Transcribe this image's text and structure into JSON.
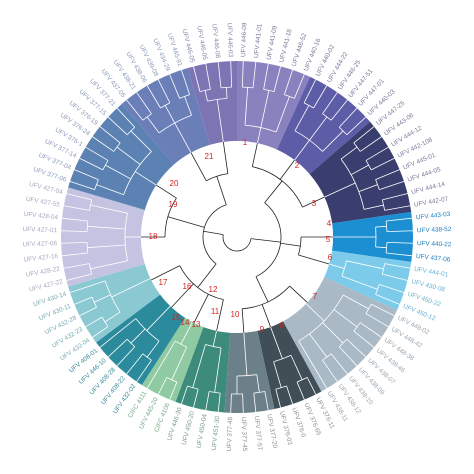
{
  "leaves": [
    "UFV 446-09",
    "UFV 441-01",
    "UFV 441-09",
    "UFV 441-18",
    "UFV 446-52",
    "UFV 440-16",
    "UFV 440-02",
    "UFV 444-22",
    "UFV 446-25",
    "UFV 447-51",
    "UFV 447-01",
    "UFV 440-03",
    "UFV 447-25",
    "UFV 443-06",
    "UFV 444-12",
    "UFV 442-108",
    "UFV 445-01",
    "UFV 444-05",
    "UFV 444-14",
    "UFV 442-07",
    "UFV 443-03",
    "UFV 438-52",
    "UFV 440-22",
    "UFV 437-06",
    "UFV 444-01",
    "UFV 430-08",
    "UFV 450-22",
    "UFV 450-12",
    "UFV 448-02",
    "UFV 448-42",
    "UFV 448-38",
    "UFV 438-46",
    "UFV 438-07",
    "UFV 438-09",
    "UFV 438-10",
    "UFV 438-12",
    "UFV 438-11",
    "UFV 376-11",
    "UFV 376-65",
    "UFV 376-0",
    "UFV 376-03",
    "UFV 377-20",
    "UFV 377-57",
    "UFV 377-45",
    "UFV 377-48",
    "UFV 451-30",
    "UFV 450-04",
    "UFV 450-20",
    "UFV 446-30",
    "CIFC 4106",
    "UFV 445-20",
    "CIFC 4111",
    "UFV 432-02",
    "UFV 408-22",
    "UFV 408-28",
    "UFV 446-10",
    "UFV 408-01",
    "UFV 432-04",
    "UFV 432-23",
    "UFV 432-28",
    "UFV 430-11",
    "UFV 430-14",
    "UFV 427-22",
    "UFV 428-22",
    "UFV 427-16",
    "UFV 427-06",
    "UFV 427-01",
    "UFV 428-04",
    "UFV 427-55",
    "UFV 427-04",
    "UFV 377-06",
    "UFV 377-04",
    "UFV 377-14",
    "UFV 376-1",
    "UFV 376-24",
    "UFV 376-19",
    "UFV 377-15",
    "UFV 377-21",
    "UFV 437-05",
    "UFV 438-21",
    "UFV 438-06",
    "UFV 439-08",
    "UFV 434-29",
    "UFV 445-91",
    "UFV 446-05",
    "UFV 446-06",
    "UFV 446-08",
    "UFV 446-03"
  ],
  "nodes": [
    "1",
    "2",
    "3",
    "4",
    "5",
    "6",
    "7",
    "8",
    "9",
    "10",
    "11",
    "12",
    "13",
    "14",
    "15",
    "16",
    "17",
    "18",
    "19",
    "20",
    "21"
  ]
}
